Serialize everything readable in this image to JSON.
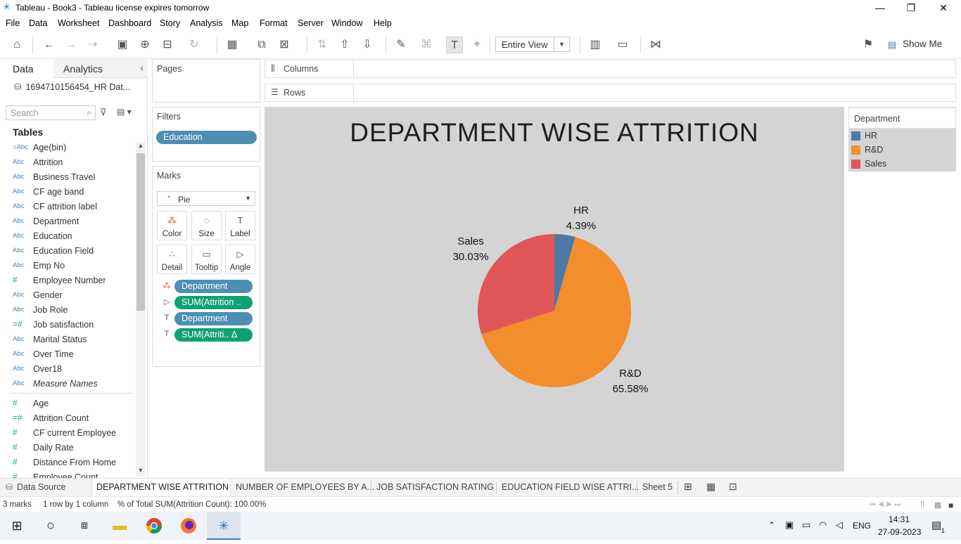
{
  "window": {
    "title": "Tableau - Book3 - Tableau license expires tomorrow",
    "controls": {
      "minimize": "—",
      "restore": "❐",
      "close": "✕"
    }
  },
  "menu": [
    "File",
    "Data",
    "Worksheet",
    "Dashboard",
    "Story",
    "Analysis",
    "Map",
    "Format",
    "Server",
    "Window",
    "Help"
  ],
  "toolbar": {
    "fit_select": "Entire View",
    "show_me": "Show Me"
  },
  "data_pane": {
    "tabs": {
      "data": "Data",
      "analytics": "Analytics"
    },
    "datasource": "1694710156454_HR Dat...",
    "search_placeholder": "Search",
    "tables_heading": "Tables",
    "dimensions": [
      {
        "type": "=Abc",
        "name": "Age(bin)"
      },
      {
        "type": "Abc",
        "name": "Attrition"
      },
      {
        "type": "Abc",
        "name": "Business Travel"
      },
      {
        "type": "Abc",
        "name": "CF age band"
      },
      {
        "type": "Abc",
        "name": "CF attrition label"
      },
      {
        "type": "Abc",
        "name": "Department"
      },
      {
        "type": "Abc",
        "name": "Education"
      },
      {
        "type": "Abc",
        "name": "Education Field"
      },
      {
        "type": "Abc",
        "name": "Emp No"
      },
      {
        "type": "#",
        "name": "Employee Number"
      },
      {
        "type": "Abc",
        "name": "Gender"
      },
      {
        "type": "Abc",
        "name": "Job Role"
      },
      {
        "type": "=#",
        "name": "Job satisfaction"
      },
      {
        "type": "Abc",
        "name": "Marital Status"
      },
      {
        "type": "Abc",
        "name": "Over Time"
      },
      {
        "type": "Abc",
        "name": "Over18"
      },
      {
        "type": "Abc",
        "name": "Measure Names"
      }
    ],
    "measures": [
      {
        "type": "#",
        "name": "Age"
      },
      {
        "type": "=#",
        "name": "Attrition Count"
      },
      {
        "type": "#",
        "name": "CF current Employee"
      },
      {
        "type": "#",
        "name": "Daily Rate"
      },
      {
        "type": "#",
        "name": "Distance From Home"
      },
      {
        "type": "#",
        "name": "Employee Count"
      }
    ]
  },
  "cards": {
    "pages": "Pages",
    "filters": "Filters",
    "filter_pill": "Education",
    "marks": "Marks",
    "mark_type": "Pie",
    "mark_buttons": [
      "Color",
      "Size",
      "Label",
      "Detail",
      "Tooltip",
      "Angle"
    ],
    "mark_pills": [
      {
        "label": "Department",
        "style": "blue"
      },
      {
        "label": "SUM(Attrition ..",
        "style": "green"
      },
      {
        "label": "Department",
        "style": "blue"
      },
      {
        "label": "SUM(Attriti..  Δ",
        "style": "green"
      }
    ]
  },
  "shelves": {
    "columns": "Columns",
    "rows": "Rows"
  },
  "view": {
    "title": "DEPARTMENT WISE ATTRITION",
    "labels": [
      {
        "name": "HR",
        "pct": "4.39%"
      },
      {
        "name": "Sales",
        "pct": "30.03%"
      },
      {
        "name": "R&D",
        "pct": "65.58%"
      }
    ]
  },
  "chart_data": {
    "type": "pie",
    "title": "DEPARTMENT WISE ATTRITION",
    "categories": [
      "HR",
      "R&D",
      "Sales"
    ],
    "values": [
      4.39,
      65.58,
      30.03
    ],
    "unit": "%",
    "colors": {
      "HR": "#4e79a7",
      "R&D": "#f28e2b",
      "Sales": "#e15759"
    },
    "legend": "right",
    "legend_title": "Department",
    "background": "#d4d4d4"
  },
  "legend": {
    "title": "Department",
    "items": [
      {
        "name": "HR",
        "color": "#4e79a7"
      },
      {
        "name": "R&D",
        "color": "#f28e2b"
      },
      {
        "name": "Sales",
        "color": "#e15759"
      }
    ]
  },
  "sheet_tabs": {
    "datasource": "Data Source",
    "sheets": [
      "DEPARTMENT WISE ATTRITION",
      "NUMBER OF EMPLOYEES BY A...",
      "JOB SATISFACTION RATING",
      "EDUCATION FIELD WISE ATTRI...",
      "Sheet 5"
    ]
  },
  "status": {
    "marks": "3 marks",
    "layout": "1 row by 1 column",
    "summary": "% of Total SUM(Attrition Count): 100.00%"
  },
  "taskbar": {
    "lang": "ENG",
    "time": "14:31",
    "date": "27-09-2023",
    "notif_count": "1"
  }
}
